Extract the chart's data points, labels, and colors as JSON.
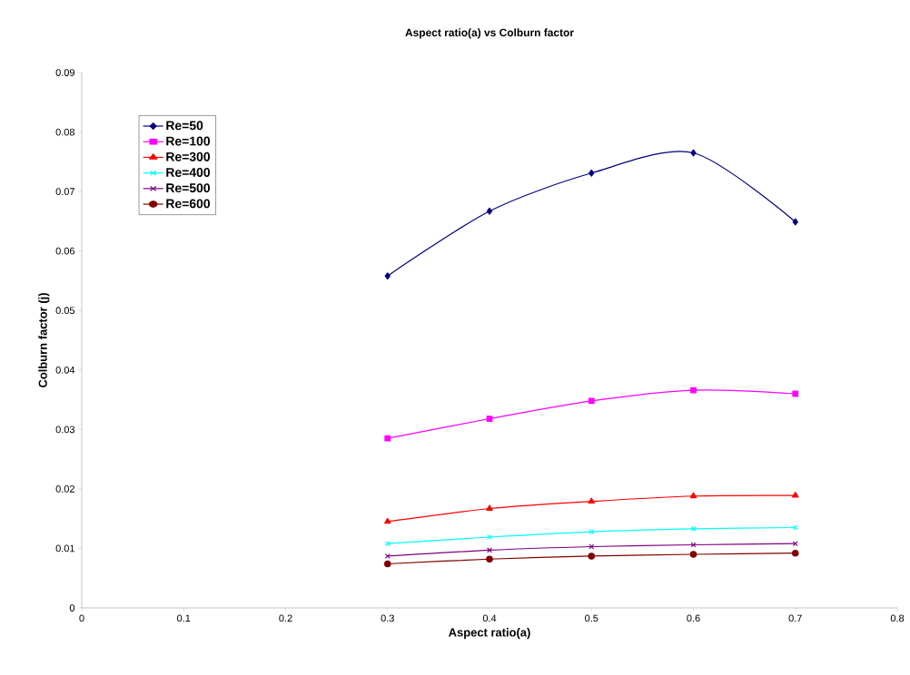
{
  "chart_data": {
    "type": "line",
    "title": "Aspect ratio(a) vs Colburn factor",
    "xlabel": "Aspect ratio(a)",
    "ylabel": "Colburn factor (j)",
    "x": [
      0.3,
      0.4,
      0.5,
      0.6,
      0.7
    ],
    "xlim": [
      0,
      0.8
    ],
    "xticks": [
      0,
      0.1,
      0.2,
      0.3,
      0.4,
      0.5,
      0.6,
      0.7,
      0.8
    ],
    "ylim": [
      0,
      0.09
    ],
    "yticks": [
      0,
      0.01,
      0.02,
      0.03,
      0.04,
      0.05,
      0.06,
      0.07,
      0.08,
      0.09
    ],
    "grid": false,
    "legend": "top left",
    "line_style": "solid",
    "series": [
      {
        "name": "Re=50",
        "color": "#000080",
        "marker": "diamond",
        "values": [
          0.0558,
          0.0667,
          0.0731,
          0.0765,
          0.0649
        ]
      },
      {
        "name": "Re=100",
        "color": "#ff00ff",
        "marker": "square",
        "values": [
          0.0285,
          0.0318,
          0.0348,
          0.0366,
          0.036
        ]
      },
      {
        "name": "Re=300",
        "color": "#ff0000",
        "marker": "triangle",
        "values": [
          0.0145,
          0.0167,
          0.0179,
          0.0188,
          0.0189
        ]
      },
      {
        "name": "Re=400",
        "color": "#00ffff",
        "marker": "cross",
        "values": [
          0.0108,
          0.0119,
          0.0128,
          0.0133,
          0.0135
        ]
      },
      {
        "name": "Re=500",
        "color": "#800080",
        "marker": "cross",
        "values": [
          0.0087,
          0.0097,
          0.0103,
          0.0106,
          0.0108
        ]
      },
      {
        "name": "Re=600",
        "color": "#800000",
        "marker": "circle",
        "values": [
          0.0074,
          0.0082,
          0.0087,
          0.009,
          0.0092
        ]
      }
    ]
  }
}
